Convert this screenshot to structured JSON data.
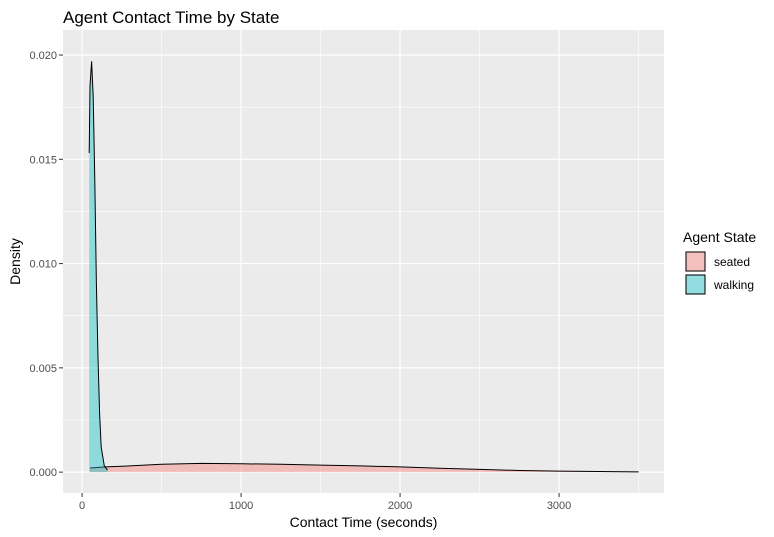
{
  "chart_data": {
    "type": "area",
    "title": "Agent Contact Time by State",
    "xlabel": "Contact Time (seconds)",
    "ylabel": "Density",
    "xlim": [
      -120,
      3660
    ],
    "ylim": [
      -0.001,
      0.0212
    ],
    "x_ticks": [
      0,
      1000,
      2000,
      3000
    ],
    "x_tick_labels": [
      "0",
      "1000",
      "2000",
      "3000"
    ],
    "y_ticks": [
      0,
      0.005,
      0.01,
      0.015,
      0.02
    ],
    "y_tick_labels": [
      "0.000",
      "0.005",
      "0.010",
      "0.015",
      "0.020"
    ],
    "grid": true,
    "legend": {
      "title": "Agent State",
      "position": "right"
    },
    "series": [
      {
        "name": "seated",
        "fill": "#F8766D",
        "fill_opacity": 0.4,
        "x": [
          50,
          150,
          300,
          500,
          750,
          1000,
          1250,
          1500,
          1750,
          2000,
          2250,
          2500,
          2750,
          3000,
          3250,
          3500
        ],
        "y": [
          0.0002,
          0.00025,
          0.0003,
          0.00038,
          0.00042,
          0.0004,
          0.00038,
          0.00034,
          0.0003,
          0.00025,
          0.00019,
          0.00013,
          8e-05,
          5e-05,
          3e-05,
          1e-05
        ]
      },
      {
        "name": "walking",
        "fill": "#00BFC4",
        "fill_opacity": 0.4,
        "x": [
          45,
          50,
          60,
          70,
          80,
          90,
          100,
          110,
          120,
          140,
          160
        ],
        "y": [
          0.0153,
          0.0185,
          0.0197,
          0.018,
          0.014,
          0.009,
          0.0055,
          0.0028,
          0.0012,
          0.0003,
          0.0001
        ]
      }
    ]
  }
}
